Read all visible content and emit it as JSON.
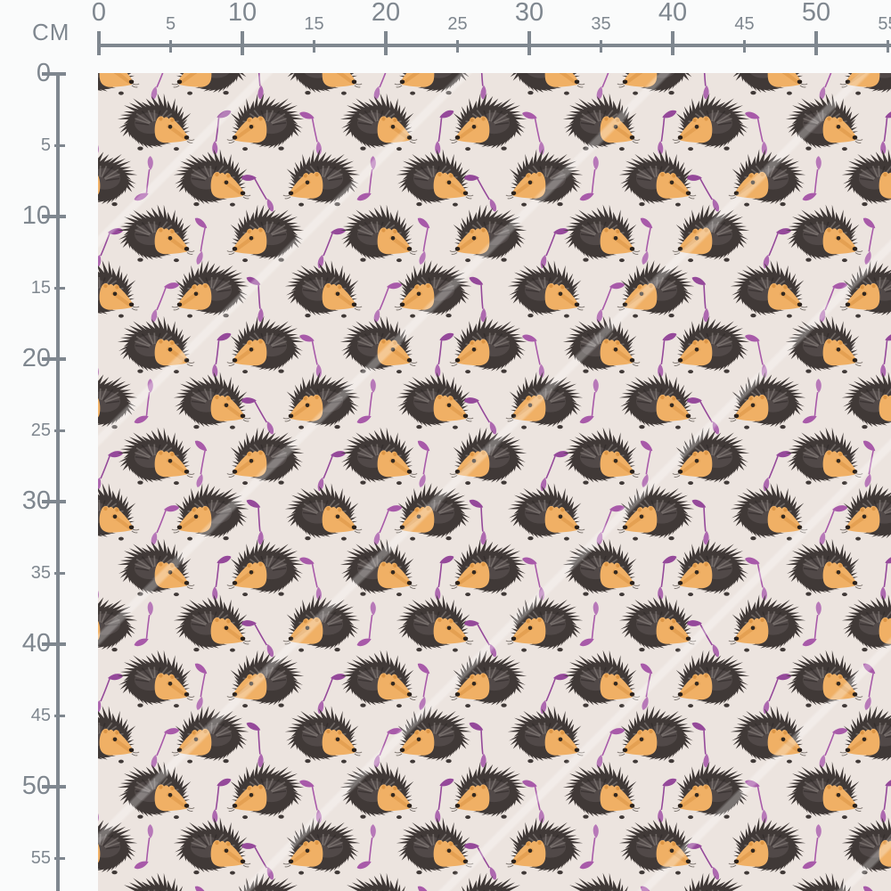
{
  "page": {
    "background": "#fafbfb"
  },
  "ruler": {
    "unit_label": "CM",
    "color": "#7f878f",
    "horizontal": {
      "ticks": [
        "0",
        "5",
        "10",
        "15",
        "20",
        "25",
        "30",
        "35",
        "40",
        "45",
        "50",
        "55"
      ]
    },
    "vertical": {
      "ticks": [
        "0",
        "5",
        "10",
        "15",
        "20",
        "25",
        "30",
        "35",
        "40",
        "45",
        "50",
        "55"
      ]
    }
  },
  "fabric": {
    "pattern_name": "hedgehogs-and-leaves",
    "background_color": "#ece4df",
    "hedgehog": {
      "body_color": "#403937",
      "fur_highlight": "#8d8683",
      "fur_shadow": "#2c2726",
      "face_color": "#f0b065",
      "face_shade": "#d8903f",
      "nose_color": "#2a211b",
      "eye_color": "#32281f"
    },
    "leaf_colors": [
      "#a85aa9",
      "#b778b8",
      "#95499a",
      "#ad68af"
    ]
  }
}
